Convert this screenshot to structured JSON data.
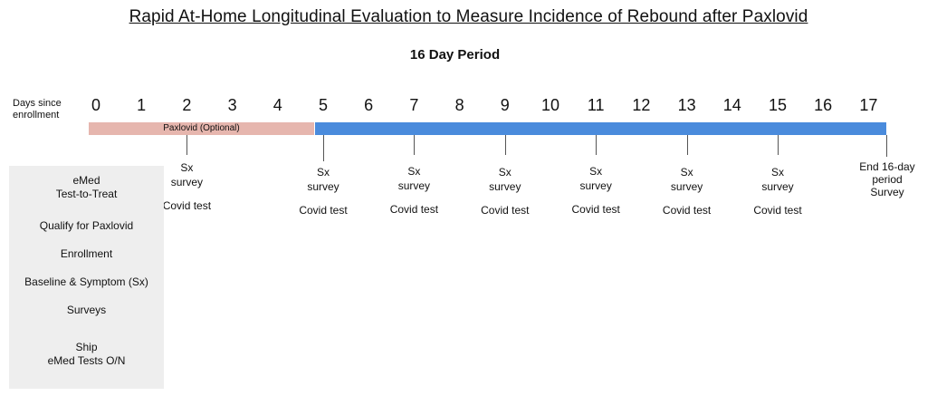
{
  "title": "Rapid At-Home Longitudinal Evaluation to Measure Incidence of Rebound after Paxlovid",
  "subtitle": "16 Day Period",
  "axis": {
    "label_line1": "Days since",
    "label_line2": "enrollment",
    "days": [
      "0",
      "1",
      "2",
      "3",
      "4",
      "5",
      "6",
      "7",
      "8",
      "9",
      "10",
      "11",
      "12",
      "13",
      "14",
      "15",
      "16",
      "17"
    ]
  },
  "bars": {
    "paxlovid_label": "Paxlovid (Optional)",
    "paxlovid_color": "#e6b6ae",
    "period_color": "#4a8bdc"
  },
  "events": [
    {
      "day": "2",
      "line1": "Sx",
      "line2": "survey",
      "line3": "Covid test"
    },
    {
      "day": "5",
      "line1": "Sx",
      "line2": "survey",
      "line3": "Covid test"
    },
    {
      "day": "7",
      "line1": "Sx",
      "line2": "survey",
      "line3": "Covid test"
    },
    {
      "day": "9",
      "line1": "Sx",
      "line2": "survey",
      "line3": "Covid test"
    },
    {
      "day": "11",
      "line1": "Sx",
      "line2": "survey",
      "line3": "Covid test"
    },
    {
      "day": "13",
      "line1": "Sx",
      "line2": "survey",
      "line3": "Covid test"
    },
    {
      "day": "15",
      "line1": "Sx",
      "line2": "survey",
      "line3": "Covid test"
    }
  ],
  "end_event": {
    "line1": "End 16-day",
    "line2": "period",
    "line3": "Survey"
  },
  "enrollment_panel": {
    "item1_line1": "eMed",
    "item1_line2": "Test-to-Treat",
    "item2": "Qualify for Paxlovid",
    "item3": "Enrollment",
    "item4": "Baseline & Symptom (Sx)",
    "item5": "Surveys",
    "item6_line1": "Ship",
    "item6_line2": "eMed Tests O/N"
  }
}
